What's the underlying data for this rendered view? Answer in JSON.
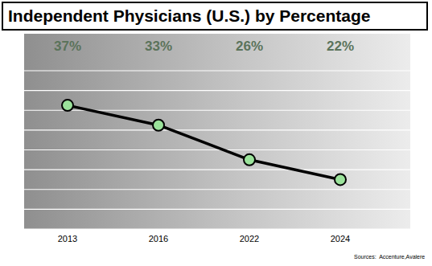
{
  "chart_data": {
    "type": "line",
    "title": "Independent Physicians (U.S.) by Percentage",
    "categories": [
      "2013",
      "2016",
      "2022",
      "2024"
    ],
    "values": [
      37,
      33,
      26,
      22
    ],
    "value_labels": [
      "37%",
      "33%",
      "26%",
      "22%"
    ],
    "data_labels": true,
    "color": "#000000",
    "marker": "circle",
    "ylim": [
      12,
      44
    ],
    "yticks": [
      12,
      16,
      20,
      24,
      28,
      32,
      36,
      40,
      44
    ],
    "grid": true,
    "tick_labels": "x",
    "source": "Sources:  Accenture,Avalere"
  }
}
